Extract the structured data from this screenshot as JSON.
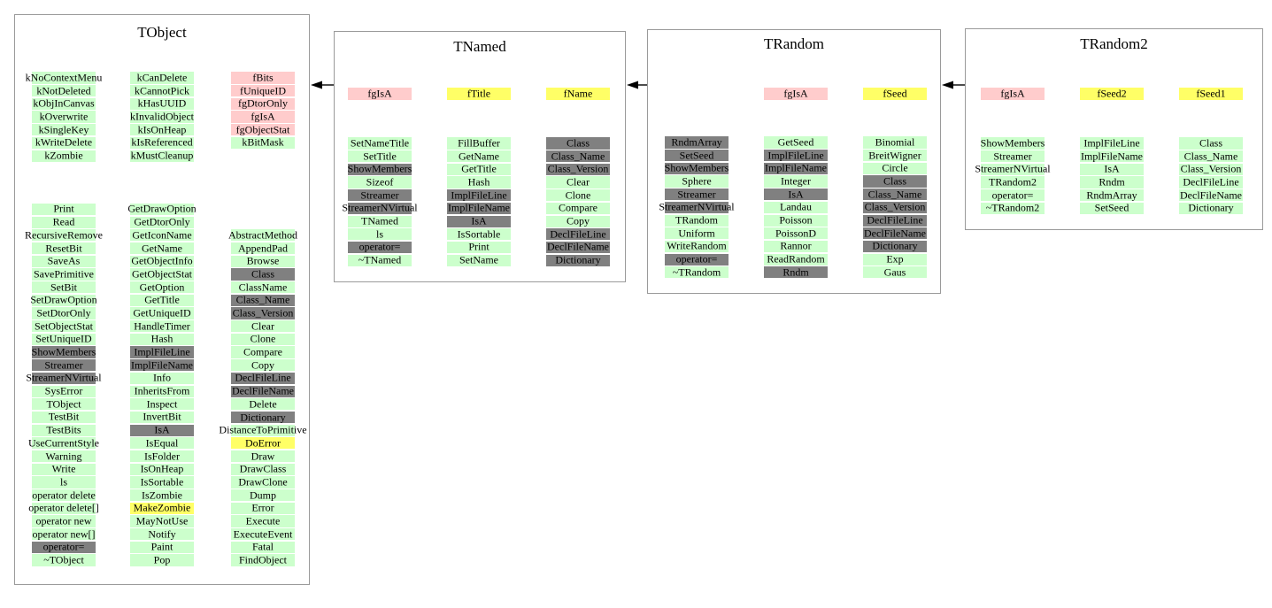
{
  "diagram": {
    "colors": {
      "green": "#ccffcc",
      "pink": "#ffcccc",
      "yellow": "#ffff66",
      "gray": "#808080"
    },
    "arrows": [
      {
        "from": "TNamed",
        "to": "TObject"
      },
      {
        "from": "TRandom",
        "to": "TNamed"
      },
      {
        "from": "TRandom2",
        "to": "TRandom"
      }
    ],
    "classes": [
      {
        "name": "TObject",
        "fields_columns": [
          [
            {
              "label": "kNoContextMenu",
              "color": "green"
            },
            {
              "label": "kNotDeleted",
              "color": "green"
            },
            {
              "label": "kObjInCanvas",
              "color": "green"
            },
            {
              "label": "kOverwrite",
              "color": "green"
            },
            {
              "label": "kSingleKey",
              "color": "green"
            },
            {
              "label": "kWriteDelete",
              "color": "green"
            },
            {
              "label": "kZombie",
              "color": "green"
            }
          ],
          [
            {
              "label": "kCanDelete",
              "color": "green"
            },
            {
              "label": "kCannotPick",
              "color": "green"
            },
            {
              "label": "kHasUUID",
              "color": "green"
            },
            {
              "label": "kInvalidObject",
              "color": "green"
            },
            {
              "label": "kIsOnHeap",
              "color": "green"
            },
            {
              "label": "kIsReferenced",
              "color": "green"
            },
            {
              "label": "kMustCleanup",
              "color": "green"
            }
          ],
          [
            {
              "label": "fBits",
              "color": "pink"
            },
            {
              "label": "fUniqueID",
              "color": "pink"
            },
            {
              "label": "fgDtorOnly",
              "color": "pink"
            },
            {
              "label": "fgIsA",
              "color": "pink"
            },
            {
              "label": "fgObjectStat",
              "color": "pink"
            },
            {
              "label": "kBitMask",
              "color": "green"
            }
          ]
        ],
        "method_columns": [
          [
            {
              "label": "Print",
              "color": "green"
            },
            {
              "label": "Read",
              "color": "green"
            },
            {
              "label": "RecursiveRemove",
              "color": "green"
            },
            {
              "label": "ResetBit",
              "color": "green"
            },
            {
              "label": "SaveAs",
              "color": "green"
            },
            {
              "label": "SavePrimitive",
              "color": "green"
            },
            {
              "label": "SetBit",
              "color": "green"
            },
            {
              "label": "SetDrawOption",
              "color": "green"
            },
            {
              "label": "SetDtorOnly",
              "color": "green"
            },
            {
              "label": "SetObjectStat",
              "color": "green"
            },
            {
              "label": "SetUniqueID",
              "color": "green"
            },
            {
              "label": "ShowMembers",
              "color": "gray"
            },
            {
              "label": "Streamer",
              "color": "gray"
            },
            {
              "label": "StreamerNVirtual",
              "color": "gray"
            },
            {
              "label": "SysError",
              "color": "green"
            },
            {
              "label": "TObject",
              "color": "green"
            },
            {
              "label": "TestBit",
              "color": "green"
            },
            {
              "label": "TestBits",
              "color": "green"
            },
            {
              "label": "UseCurrentStyle",
              "color": "green"
            },
            {
              "label": "Warning",
              "color": "green"
            },
            {
              "label": "Write",
              "color": "green"
            },
            {
              "label": "ls",
              "color": "green"
            },
            {
              "label": "operator delete",
              "color": "green"
            },
            {
              "label": "operator delete[]",
              "color": "green"
            },
            {
              "label": "operator new",
              "color": "green"
            },
            {
              "label": "operator new[]",
              "color": "green"
            },
            {
              "label": "operator=",
              "color": "gray"
            },
            {
              "label": "~TObject",
              "color": "green"
            }
          ],
          [
            {
              "label": "GetDrawOption",
              "color": "green"
            },
            {
              "label": "GetDtorOnly",
              "color": "green"
            },
            {
              "label": "GetIconName",
              "color": "green"
            },
            {
              "label": "GetName",
              "color": "green"
            },
            {
              "label": "GetObjectInfo",
              "color": "green"
            },
            {
              "label": "GetObjectStat",
              "color": "green"
            },
            {
              "label": "GetOption",
              "color": "green"
            },
            {
              "label": "GetTitle",
              "color": "green"
            },
            {
              "label": "GetUniqueID",
              "color": "green"
            },
            {
              "label": "HandleTimer",
              "color": "green"
            },
            {
              "label": "Hash",
              "color": "green"
            },
            {
              "label": "ImplFileLine",
              "color": "gray"
            },
            {
              "label": "ImplFileName",
              "color": "gray"
            },
            {
              "label": "Info",
              "color": "green"
            },
            {
              "label": "InheritsFrom",
              "color": "green"
            },
            {
              "label": "Inspect",
              "color": "green"
            },
            {
              "label": "InvertBit",
              "color": "green"
            },
            {
              "label": "IsA",
              "color": "gray"
            },
            {
              "label": "IsEqual",
              "color": "green"
            },
            {
              "label": "IsFolder",
              "color": "green"
            },
            {
              "label": "IsOnHeap",
              "color": "green"
            },
            {
              "label": "IsSortable",
              "color": "green"
            },
            {
              "label": "IsZombie",
              "color": "green"
            },
            {
              "label": "MakeZombie",
              "color": "yellow"
            },
            {
              "label": "MayNotUse",
              "color": "green"
            },
            {
              "label": "Notify",
              "color": "green"
            },
            {
              "label": "Paint",
              "color": "green"
            },
            {
              "label": "Pop",
              "color": "green"
            }
          ],
          [
            {
              "label": "AbstractMethod",
              "color": "green"
            },
            {
              "label": "AppendPad",
              "color": "green"
            },
            {
              "label": "Browse",
              "color": "green"
            },
            {
              "label": "Class",
              "color": "gray"
            },
            {
              "label": "ClassName",
              "color": "green"
            },
            {
              "label": "Class_Name",
              "color": "gray"
            },
            {
              "label": "Class_Version",
              "color": "gray"
            },
            {
              "label": "Clear",
              "color": "green"
            },
            {
              "label": "Clone",
              "color": "green"
            },
            {
              "label": "Compare",
              "color": "green"
            },
            {
              "label": "Copy",
              "color": "green"
            },
            {
              "label": "DeclFileLine",
              "color": "gray"
            },
            {
              "label": "DeclFileName",
              "color": "gray"
            },
            {
              "label": "Delete",
              "color": "green"
            },
            {
              "label": "Dictionary",
              "color": "gray"
            },
            {
              "label": "DistanceToPrimitive",
              "color": "green"
            },
            {
              "label": "DoError",
              "color": "yellow"
            },
            {
              "label": "Draw",
              "color": "green"
            },
            {
              "label": "DrawClass",
              "color": "green"
            },
            {
              "label": "DrawClone",
              "color": "green"
            },
            {
              "label": "Dump",
              "color": "green"
            },
            {
              "label": "Error",
              "color": "green"
            },
            {
              "label": "Execute",
              "color": "green"
            },
            {
              "label": "ExecuteEvent",
              "color": "green"
            },
            {
              "label": "Fatal",
              "color": "green"
            },
            {
              "label": "FindObject",
              "color": "green"
            }
          ]
        ]
      },
      {
        "name": "TNamed",
        "fields_columns": [
          [
            {
              "label": "fgIsA",
              "color": "pink"
            }
          ],
          [
            {
              "label": "fTitle",
              "color": "yellow"
            }
          ],
          [
            {
              "label": "fName",
              "color": "yellow"
            }
          ]
        ],
        "method_columns": [
          [
            {
              "label": "SetNameTitle",
              "color": "green"
            },
            {
              "label": "SetTitle",
              "color": "green"
            },
            {
              "label": "ShowMembers",
              "color": "gray"
            },
            {
              "label": "Sizeof",
              "color": "green"
            },
            {
              "label": "Streamer",
              "color": "gray"
            },
            {
              "label": "StreamerNVirtual",
              "color": "gray"
            },
            {
              "label": "TNamed",
              "color": "green"
            },
            {
              "label": "ls",
              "color": "green"
            },
            {
              "label": "operator=",
              "color": "gray"
            },
            {
              "label": "~TNamed",
              "color": "green"
            }
          ],
          [
            {
              "label": "FillBuffer",
              "color": "green"
            },
            {
              "label": "GetName",
              "color": "green"
            },
            {
              "label": "GetTitle",
              "color": "green"
            },
            {
              "label": "Hash",
              "color": "green"
            },
            {
              "label": "ImplFileLine",
              "color": "gray"
            },
            {
              "label": "ImplFileName",
              "color": "gray"
            },
            {
              "label": "IsA",
              "color": "gray"
            },
            {
              "label": "IsSortable",
              "color": "green"
            },
            {
              "label": "Print",
              "color": "green"
            },
            {
              "label": "SetName",
              "color": "green"
            }
          ],
          [
            {
              "label": "Class",
              "color": "gray"
            },
            {
              "label": "Class_Name",
              "color": "gray"
            },
            {
              "label": "Class_Version",
              "color": "gray"
            },
            {
              "label": "Clear",
              "color": "green"
            },
            {
              "label": "Clone",
              "color": "green"
            },
            {
              "label": "Compare",
              "color": "green"
            },
            {
              "label": "Copy",
              "color": "green"
            },
            {
              "label": "DeclFileLine",
              "color": "gray"
            },
            {
              "label": "DeclFileName",
              "color": "gray"
            },
            {
              "label": "Dictionary",
              "color": "gray"
            }
          ]
        ]
      },
      {
        "name": "TRandom",
        "fields_columns": [
          [],
          [
            {
              "label": "fgIsA",
              "color": "pink"
            }
          ],
          [
            {
              "label": "fSeed",
              "color": "yellow"
            }
          ]
        ],
        "method_columns": [
          [
            {
              "label": "RndmArray",
              "color": "gray"
            },
            {
              "label": "SetSeed",
              "color": "gray"
            },
            {
              "label": "ShowMembers",
              "color": "gray"
            },
            {
              "label": "Sphere",
              "color": "green"
            },
            {
              "label": "Streamer",
              "color": "gray"
            },
            {
              "label": "StreamerNVirtual",
              "color": "gray"
            },
            {
              "label": "TRandom",
              "color": "green"
            },
            {
              "label": "Uniform",
              "color": "green"
            },
            {
              "label": "WriteRandom",
              "color": "green"
            },
            {
              "label": "operator=",
              "color": "gray"
            },
            {
              "label": "~TRandom",
              "color": "green"
            }
          ],
          [
            {
              "label": "GetSeed",
              "color": "green"
            },
            {
              "label": "ImplFileLine",
              "color": "gray"
            },
            {
              "label": "ImplFileName",
              "color": "gray"
            },
            {
              "label": "Integer",
              "color": "green"
            },
            {
              "label": "IsA",
              "color": "gray"
            },
            {
              "label": "Landau",
              "color": "green"
            },
            {
              "label": "Poisson",
              "color": "green"
            },
            {
              "label": "PoissonD",
              "color": "green"
            },
            {
              "label": "Rannor",
              "color": "green"
            },
            {
              "label": "ReadRandom",
              "color": "green"
            },
            {
              "label": "Rndm",
              "color": "gray"
            }
          ],
          [
            {
              "label": "Binomial",
              "color": "green"
            },
            {
              "label": "BreitWigner",
              "color": "green"
            },
            {
              "label": "Circle",
              "color": "green"
            },
            {
              "label": "Class",
              "color": "gray"
            },
            {
              "label": "Class_Name",
              "color": "gray"
            },
            {
              "label": "Class_Version",
              "color": "gray"
            },
            {
              "label": "DeclFileLine",
              "color": "gray"
            },
            {
              "label": "DeclFileName",
              "color": "gray"
            },
            {
              "label": "Dictionary",
              "color": "gray"
            },
            {
              "label": "Exp",
              "color": "green"
            },
            {
              "label": "Gaus",
              "color": "green"
            }
          ]
        ]
      },
      {
        "name": "TRandom2",
        "fields_columns": [
          [
            {
              "label": "fgIsA",
              "color": "pink"
            }
          ],
          [
            {
              "label": "fSeed2",
              "color": "yellow"
            }
          ],
          [
            {
              "label": "fSeed1",
              "color": "yellow"
            }
          ]
        ],
        "method_columns": [
          [
            {
              "label": "ShowMembers",
              "color": "green"
            },
            {
              "label": "Streamer",
              "color": "green"
            },
            {
              "label": "StreamerNVirtual",
              "color": "green"
            },
            {
              "label": "TRandom2",
              "color": "green"
            },
            {
              "label": "operator=",
              "color": "green"
            },
            {
              "label": "~TRandom2",
              "color": "green"
            }
          ],
          [
            {
              "label": "ImplFileLine",
              "color": "green"
            },
            {
              "label": "ImplFileName",
              "color": "green"
            },
            {
              "label": "IsA",
              "color": "green"
            },
            {
              "label": "Rndm",
              "color": "green"
            },
            {
              "label": "RndmArray",
              "color": "green"
            },
            {
              "label": "SetSeed",
              "color": "green"
            }
          ],
          [
            {
              "label": "Class",
              "color": "green"
            },
            {
              "label": "Class_Name",
              "color": "green"
            },
            {
              "label": "Class_Version",
              "color": "green"
            },
            {
              "label": "DeclFileLine",
              "color": "green"
            },
            {
              "label": "DeclFileName",
              "color": "green"
            },
            {
              "label": "Dictionary",
              "color": "green"
            }
          ]
        ]
      }
    ]
  }
}
